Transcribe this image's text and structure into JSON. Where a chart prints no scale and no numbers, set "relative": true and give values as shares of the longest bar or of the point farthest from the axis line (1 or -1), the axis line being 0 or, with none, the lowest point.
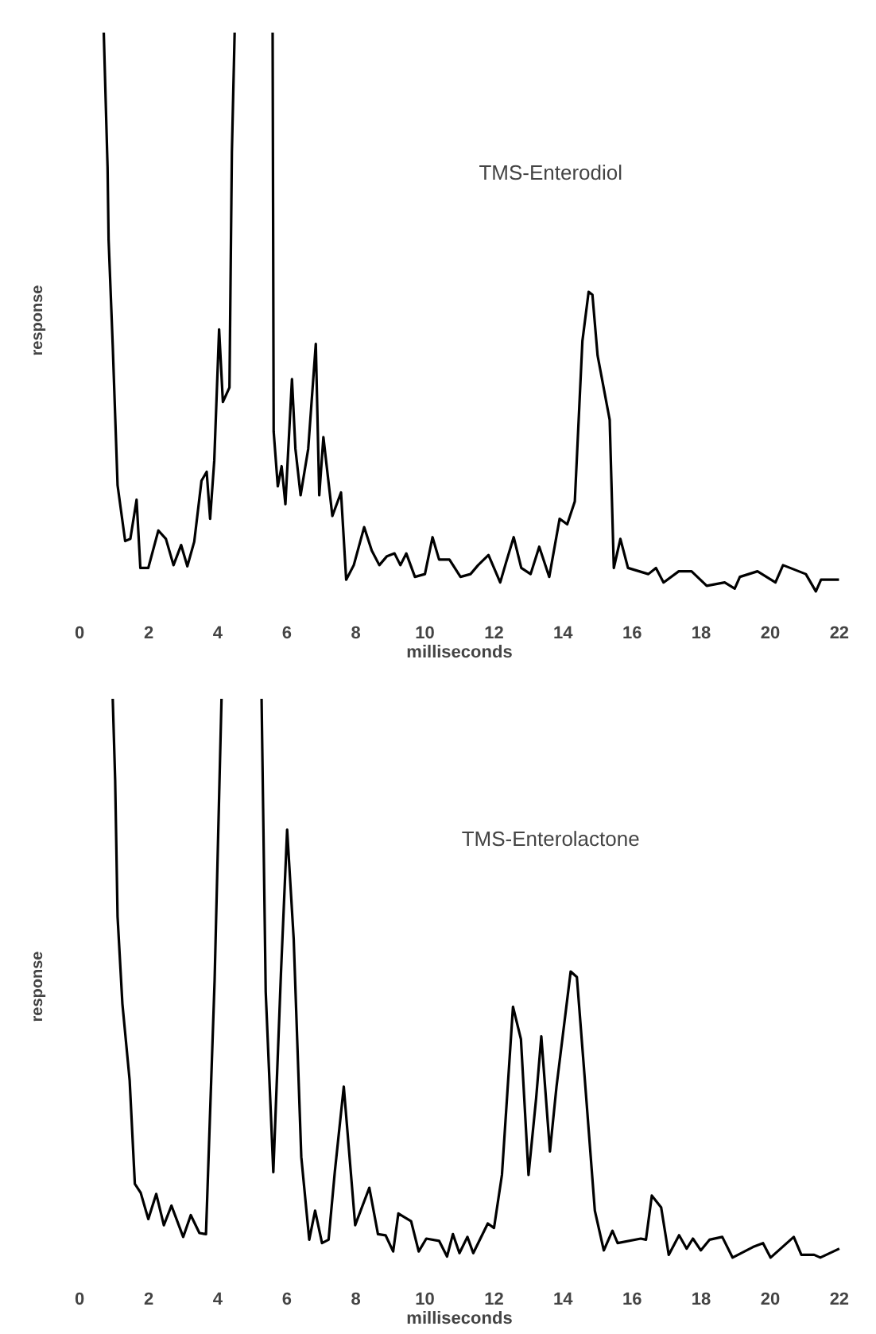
{
  "chart_data": [
    {
      "type": "line",
      "title": "TMS-Enterodiol",
      "xlabel": "milliseconds",
      "ylabel": "response",
      "relative": true,
      "tick_labels": "x",
      "marker": "none",
      "line_style": "solid",
      "xlim": [
        0,
        22
      ],
      "xticks": [
        0,
        2,
        4,
        6,
        8,
        10,
        12,
        14,
        16,
        18,
        20,
        22
      ],
      "series": [
        {
          "color": "#000000",
          "x": [
            0.7,
            0.81,
            0.84,
            0.96,
            1.1,
            1.32,
            1.47,
            1.65,
            1.76,
            1.99,
            2.28,
            2.5,
            2.72,
            2.94,
            3.12,
            3.32,
            3.53,
            3.68,
            3.78,
            3.9,
            4.04,
            4.15,
            4.34,
            4.41,
            4.49,
            5.0,
            5.59,
            5.62,
            5.74,
            5.85,
            5.96,
            6.15,
            6.25,
            6.4,
            6.62,
            6.84,
            6.94,
            7.06,
            7.32,
            7.57,
            7.72,
            7.94,
            8.24,
            8.46,
            8.68,
            8.9,
            9.12,
            9.29,
            9.46,
            9.71,
            10.0,
            10.22,
            10.41,
            10.71,
            11.03,
            11.32,
            11.54,
            11.84,
            12.18,
            12.35,
            12.57,
            12.79,
            13.06,
            13.31,
            13.6,
            13.9,
            14.12,
            14.34,
            14.56,
            14.74,
            14.85,
            15.0,
            15.35,
            15.47,
            15.66,
            15.88,
            16.47,
            16.69,
            16.91,
            17.35,
            17.72,
            18.16,
            18.68,
            18.97,
            19.12,
            19.63,
            20.15,
            20.37,
            21.03,
            21.32,
            21.47,
            21.99
          ],
          "values": [
            1,
            0.76,
            0.63,
            0.44,
            0.19,
            0.09,
            0.094,
            0.164,
            0.042,
            0.042,
            0.109,
            0.094,
            0.047,
            0.083,
            0.045,
            0.089,
            0.198,
            0.214,
            0.13,
            0.234,
            0.469,
            0.339,
            0.365,
            0.786,
            1,
            null,
            1,
            0.286,
            0.188,
            0.224,
            0.156,
            0.38,
            0.255,
            0.172,
            0.255,
            0.443,
            0.172,
            0.276,
            0.135,
            0.177,
            0.021,
            0.047,
            0.115,
            0.073,
            0.047,
            0.063,
            0.068,
            0.047,
            0.068,
            0.026,
            0.031,
            0.097,
            0.057,
            0.057,
            0.026,
            0.031,
            0.047,
            0.065,
            0.016,
            0.052,
            0.097,
            0.042,
            0.031,
            0.08,
            0.026,
            0.13,
            0.12,
            0.161,
            0.448,
            0.536,
            0.531,
            0.422,
            0.307,
            0.042,
            0.094,
            0.042,
            0.031,
            0.042,
            0.016,
            0.036,
            0.036,
            0.01,
            0.016,
            0.005,
            0.026,
            0.036,
            0.016,
            0.047,
            0.031,
            0,
            0.021,
            0.021
          ]
        }
      ]
    },
    {
      "type": "line",
      "title": "TMS-Enterolactone",
      "xlabel": "milliseconds",
      "ylabel": "response",
      "relative": true,
      "tick_labels": "x",
      "marker": "none",
      "line_style": "solid",
      "xlim": [
        0,
        22
      ],
      "xticks": [
        0,
        2,
        4,
        6,
        8,
        10,
        12,
        14,
        16,
        18,
        20,
        22
      ],
      "series": [
        {
          "color": "#000000",
          "x": [
            0.96,
            1.03,
            1.1,
            1.24,
            1.45,
            1.6,
            1.77,
            1.99,
            2.22,
            2.44,
            2.66,
            3.0,
            3.22,
            3.47,
            3.66,
            3.77,
            3.91,
            4.11,
            4.7,
            5.27,
            5.39,
            5.61,
            5.83,
            6.01,
            6.2,
            6.42,
            6.65,
            6.82,
            7.02,
            7.21,
            7.39,
            7.65,
            7.98,
            8.39,
            8.64,
            8.86,
            9.08,
            9.23,
            9.6,
            9.82,
            10.04,
            10.41,
            10.64,
            10.81,
            11.0,
            11.23,
            11.4,
            11.82,
            12.0,
            12.23,
            12.55,
            12.78,
            13.0,
            13.22,
            13.37,
            13.62,
            13.81,
            14.22,
            14.4,
            14.62,
            14.92,
            15.18,
            15.43,
            15.58,
            16.25,
            16.4,
            16.57,
            16.84,
            17.06,
            17.36,
            17.58,
            17.76,
            17.99,
            18.24,
            18.61,
            18.91,
            19.5,
            19.79,
            20.01,
            20.68,
            20.9,
            21.27,
            21.45,
            22.0
          ],
          "values": [
            1,
            0.855,
            0.61,
            0.454,
            0.317,
            0.132,
            0.116,
            0.069,
            0.114,
            0.058,
            0.093,
            0.037,
            0.076,
            0.044,
            0.042,
            0.243,
            0.496,
            1,
            null,
            1,
            0.475,
            0.153,
            0.507,
            0.766,
            0.57,
            0.18,
            0.032,
            0.084,
            0.026,
            0.032,
            0.153,
            0.306,
            0.058,
            0.125,
            0.042,
            0.04,
            0.011,
            0.079,
            0.065,
            0.011,
            0.034,
            0.03,
            0.002,
            0.042,
            0.008,
            0.037,
            0.008,
            0.061,
            0.053,
            0.148,
            0.449,
            0.391,
            0.148,
            0.285,
            0.396,
            0.19,
            0.306,
            0.512,
            0.502,
            0.327,
            0.084,
            0.013,
            0.048,
            0.026,
            0.034,
            0.032,
            0.111,
            0.09,
            0.005,
            0.04,
            0.016,
            0.034,
            0.013,
            0.032,
            0.037,
            0,
            0.019,
            0.026,
            0,
            0.037,
            0.005,
            0.005,
            0,
            0.016
          ]
        }
      ]
    }
  ]
}
